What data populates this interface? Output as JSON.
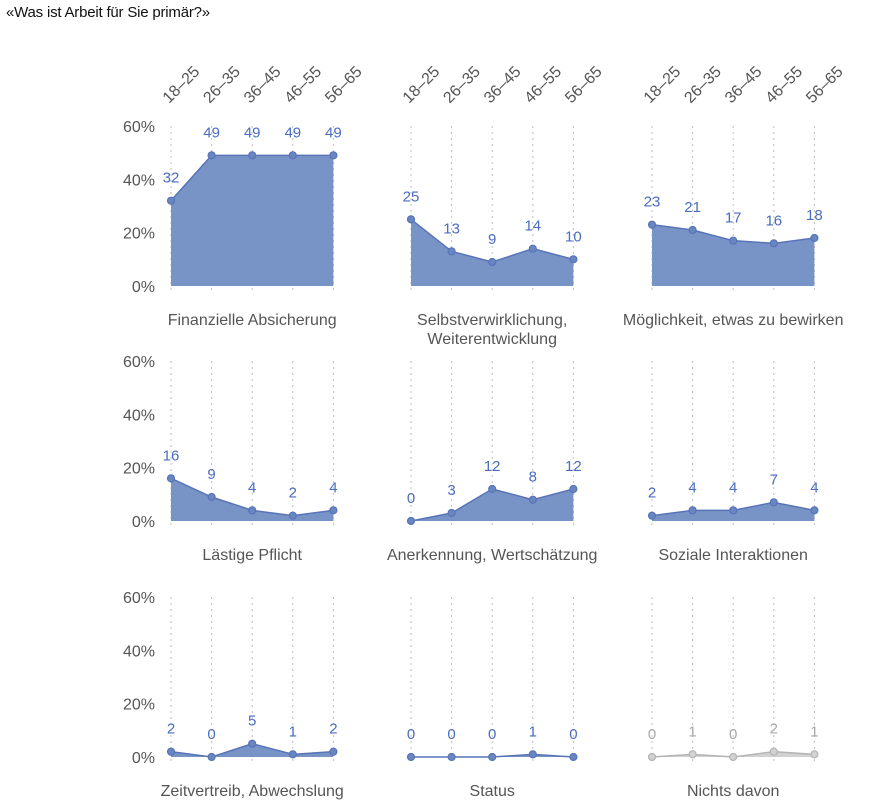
{
  "title": "«Was ist Arbeit für Sie primär?»",
  "colors": {
    "fill": "#7894c6",
    "line": "#5874b8",
    "point": "#6a86c0",
    "label": "#4a6cc0",
    "muted_fill": "#d2d2d2",
    "muted_line": "#b4b4b4",
    "muted_label": "#a8a8a8",
    "grid": "#bdbdbd",
    "axis_text": "#555555"
  },
  "chart_data": {
    "type": "area",
    "title": "«Was ist Arbeit für Sie primär?»",
    "categories": [
      "18–25",
      "26–35",
      "36–45",
      "46–55",
      "56–65"
    ],
    "yticks": [
      "0%",
      "20%",
      "40%",
      "60%"
    ],
    "ytick_values": [
      0,
      20,
      40,
      60
    ],
    "ylim": [
      0,
      60
    ],
    "grid": "vertical dotted",
    "panels": [
      {
        "name": "Finanzielle Absicherung",
        "label_lines": [
          "Finanzielle Absicherung"
        ],
        "values": [
          32,
          49,
          49,
          49,
          49
        ],
        "muted": false
      },
      {
        "name": "Selbstverwirklichung, Weiterentwicklung",
        "label_lines": [
          "Selbstverwirklichung,",
          "Weiterentwicklung"
        ],
        "values": [
          25,
          13,
          9,
          14,
          10
        ],
        "muted": false
      },
      {
        "name": "Möglichkeit, etwas zu bewirken",
        "label_lines": [
          "Möglichkeit, etwas zu bewirken"
        ],
        "values": [
          23,
          21,
          17,
          16,
          18
        ],
        "muted": false
      },
      {
        "name": "Lästige Pflicht",
        "label_lines": [
          "Lästige Pflicht"
        ],
        "values": [
          16,
          9,
          4,
          2,
          4
        ],
        "muted": false
      },
      {
        "name": "Anerkennung, Wertschätzung",
        "label_lines": [
          "Anerkennung, Wertschätzung"
        ],
        "values": [
          0,
          3,
          12,
          8,
          12
        ],
        "muted": false
      },
      {
        "name": "Soziale Interaktionen",
        "label_lines": [
          "Soziale Interaktionen"
        ],
        "values": [
          2,
          4,
          4,
          7,
          4
        ],
        "muted": false
      },
      {
        "name": "Zeitvertreib, Abwechslung",
        "label_lines": [
          "Zeitvertreib, Abwechslung"
        ],
        "values": [
          2,
          0,
          5,
          1,
          2
        ],
        "muted": false
      },
      {
        "name": "Status",
        "label_lines": [
          "Status"
        ],
        "values": [
          0,
          0,
          0,
          1,
          0
        ],
        "muted": false
      },
      {
        "name": "Nichts davon",
        "label_lines": [
          "Nichts davon"
        ],
        "values": [
          0,
          1,
          0,
          2,
          1
        ],
        "muted": true
      }
    ]
  }
}
